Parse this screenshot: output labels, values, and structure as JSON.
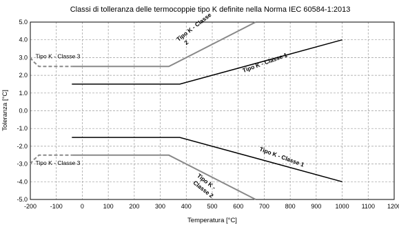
{
  "chart_data": {
    "type": "line",
    "title": "Classi di tolleranza delle termocoppie tipo K definite nella Norma IEC 60584-1:2013",
    "xlabel": "Temperatura [°C]",
    "ylabel": "Toleranza [°C]",
    "xlim": [
      -200,
      1200
    ],
    "ylim": [
      -5.0,
      5.0
    ],
    "xticks": [
      -200,
      -100,
      0,
      100,
      200,
      300,
      400,
      500,
      600,
      700,
      800,
      900,
      1000,
      1100,
      1200
    ],
    "xtick_labels": [
      "-200",
      "-100",
      "0",
      "100",
      "200",
      "300",
      "400",
      "500",
      "600",
      "700",
      "800",
      "900",
      "1000",
      "1100",
      "1200"
    ],
    "yticks": [
      5.0,
      4.0,
      3.0,
      2.0,
      1.0,
      0.0,
      -1.0,
      -2.0,
      -3.0,
      -4.0,
      -5.0
    ],
    "ytick_labels": [
      "5.0",
      "4.0",
      "3.0",
      "2.0",
      "1.0",
      "0.0",
      "-1.0",
      "-2.0",
      "-3.0",
      "-4.0",
      "-5.0"
    ],
    "grid": true,
    "series": [
      {
        "id": "classe1_pos",
        "color": "#000000",
        "style": "solid",
        "x": [
          -40,
          375,
          1000
        ],
        "y": [
          1.5,
          1.5,
          4.0
        ]
      },
      {
        "id": "classe1_neg",
        "color": "#000000",
        "style": "solid",
        "x": [
          -40,
          375,
          1000
        ],
        "y": [
          -1.5,
          -1.5,
          -4.0
        ]
      },
      {
        "id": "classe2_pos",
        "color": "#888888",
        "style": "solid",
        "x": [
          -40,
          333,
          667
        ],
        "y": [
          2.5,
          2.5,
          5.0
        ]
      },
      {
        "id": "classe2_neg",
        "color": "#888888",
        "style": "solid",
        "x": [
          -40,
          333,
          667
        ],
        "y": [
          -2.5,
          -2.5,
          -5.0
        ]
      },
      {
        "id": "classe3_pos",
        "color": "#888888",
        "style": "dashed",
        "x": [
          -200,
          -190,
          -167,
          -40
        ],
        "y": [
          3.0,
          2.8,
          2.5,
          2.5
        ]
      },
      {
        "id": "classe3_neg",
        "color": "#888888",
        "style": "dashed",
        "x": [
          -200,
          -190,
          -167,
          -40
        ],
        "y": [
          -3.0,
          -2.8,
          -2.5,
          -2.5
        ]
      }
    ],
    "annotations": [
      {
        "text": "Tipo K - Classe 3",
        "x": -180,
        "y": 2.95,
        "rotate": 0,
        "bold": false
      },
      {
        "text": "Tipo K - Classe 3",
        "x": -180,
        "y": -3.05,
        "rotate": 0,
        "bold": false
      },
      {
        "text": "Tipo K - Classe",
        "x": 370,
        "y": 3.9,
        "rotate": -38,
        "bold": true
      },
      {
        "text": "2",
        "x": 400,
        "y": 3.7,
        "rotate": -38,
        "bold": true
      },
      {
        "text": "Tipo K - Classe 1",
        "x": 620,
        "y": 2.15,
        "rotate": -20,
        "bold": true
      },
      {
        "text": "Tipo K - Classe 1",
        "x": 680,
        "y": -2.25,
        "rotate": 20,
        "bold": true
      },
      {
        "text": "Tipo K -",
        "x": 440,
        "y": -3.7,
        "rotate": 38,
        "bold": true
      },
      {
        "text": "Classe 2",
        "x": 425,
        "y": -4.1,
        "rotate": 38,
        "bold": true
      }
    ]
  }
}
